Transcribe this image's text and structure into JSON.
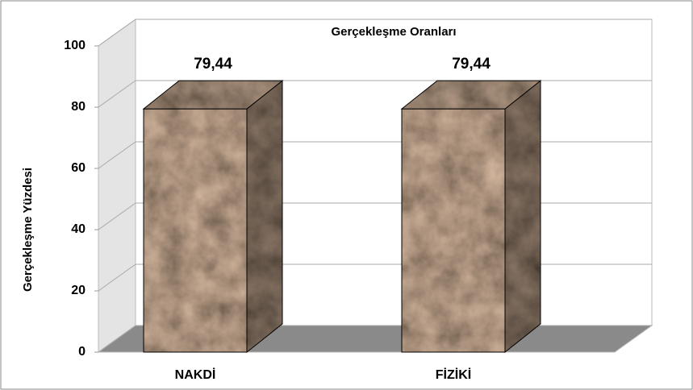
{
  "chart_data": {
    "type": "bar",
    "title": "Gerçekleşme Oranları",
    "y_label": "Gerçekleşme Yüzdesi",
    "categories": [
      "NAKDİ",
      "FİZİKİ"
    ],
    "values": [
      79.44,
      79.44
    ],
    "value_labels": [
      "79,44",
      "79,44"
    ],
    "color": "#4a3526",
    "ylim": [
      0,
      100
    ],
    "yticks": [
      0,
      20,
      40,
      60,
      80,
      100
    ],
    "grid": true
  }
}
